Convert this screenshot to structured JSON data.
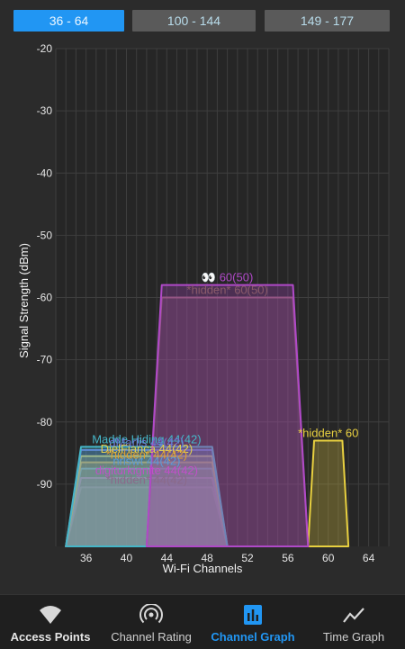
{
  "band_tabs": [
    {
      "label": "36 - 64",
      "active": true
    },
    {
      "label": "100 - 144",
      "active": false
    },
    {
      "label": "149 - 177",
      "active": false
    }
  ],
  "chart_data": {
    "type": "area",
    "title": "",
    "xlabel": "Wi-Fi Channels",
    "ylabel": "Signal Strength (dBm)",
    "x_ticks": [
      36,
      40,
      44,
      48,
      52,
      56,
      60,
      64
    ],
    "y_ticks": [
      -20,
      -30,
      -40,
      -50,
      -60,
      -70,
      -80,
      -90
    ],
    "xlim": [
      33,
      66
    ],
    "ylim": [
      -100,
      -20
    ],
    "series": [
      {
        "name": "👀",
        "channel": 60,
        "center": 50,
        "width_mhz": 80,
        "signal": -58,
        "color": "#b049c8",
        "label": "👀 60(50)"
      },
      {
        "name": "*hidden*",
        "channel": 60,
        "center": 50,
        "width_mhz": 80,
        "signal": -60,
        "color": "#8a5a6a",
        "label": "*hidden* 60(50)"
      },
      {
        "name": "Madde Hiding",
        "channel": 44,
        "center": 42,
        "width_mhz": 80,
        "signal": -84,
        "color": "#45b6c8",
        "label": "Madde Hiding 44(42)"
      },
      {
        "name": "dMarlis",
        "channel": 44,
        "center": 42,
        "width_mhz": 80,
        "signal": -84.5,
        "color": "#6a7ad8",
        "label": "dMarlis 44(42)"
      },
      {
        "name": "DielFiança",
        "channel": 44,
        "center": 42,
        "width_mhz": 80,
        "signal": -85.5,
        "color": "#e0d050",
        "label": "DielFiança 44(42)"
      },
      {
        "name": "*hidden*",
        "channel": 44,
        "center": 42,
        "width_mhz": 80,
        "signal": -86.5,
        "color": "#e0a030",
        "label": "*hidden* 44(42)"
      },
      {
        "name": "nrlswt",
        "channel": 44,
        "center": 42,
        "width_mhz": 80,
        "signal": -87.5,
        "color": "#5a9ad8",
        "label": "nrlswt 44(42)"
      },
      {
        "name": "digiturkignite",
        "channel": 44,
        "center": 42,
        "width_mhz": 80,
        "signal": -89,
        "color": "#c050c8",
        "label": "digiturkignite 44(42)"
      },
      {
        "name": "*hidden*",
        "channel": 44,
        "center": 42,
        "width_mhz": 80,
        "signal": -90.5,
        "color": "#8a6a8a",
        "label": "*hidden* 44(42)"
      },
      {
        "name": "*hidden*",
        "channel": 60,
        "center": 60,
        "width_mhz": 20,
        "signal": -83,
        "color": "#e8d040",
        "label": "*hidden* 60"
      }
    ]
  },
  "nav": [
    {
      "label": "Access Points",
      "icon": "wifi-icon",
      "active": false,
      "bold": true
    },
    {
      "label": "Channel Rating",
      "icon": "signal-rating-icon",
      "active": false,
      "bold": false
    },
    {
      "label": "Channel Graph",
      "icon": "bar-chart-icon",
      "active": true,
      "bold": false
    },
    {
      "label": "Time Graph",
      "icon": "line-chart-icon",
      "active": false,
      "bold": false
    }
  ],
  "colors": {
    "accent": "#2196f3",
    "tab_inactive": "#5a5a5a",
    "background": "#2b2b2b"
  }
}
